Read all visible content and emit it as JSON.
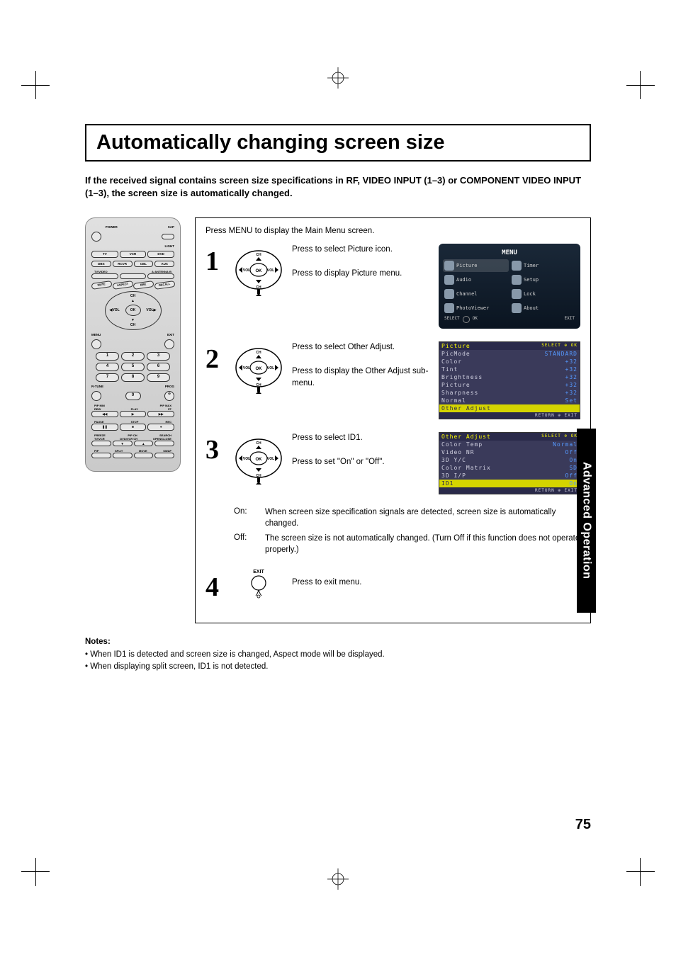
{
  "page": {
    "title": "Automatically changing screen size",
    "intro": "If the received signal contains screen size specifications in RF, VIDEO INPUT (1–3) or COMPONENT VIDEO INPUT (1–3), the screen size is automatically changed.",
    "side_tab": "Advanced Operation",
    "page_number": "75"
  },
  "steps": {
    "header": "Press MENU to display the Main Menu screen.",
    "items": [
      {
        "num": "1",
        "text1": "Press to select Picture icon.",
        "text2": "Press to display Picture menu.",
        "osd_type": "menu"
      },
      {
        "num": "2",
        "text1": "Press to select Other Adjust.",
        "text2": "Press to display the Other Adjust sub-menu.",
        "osd_type": "picture"
      },
      {
        "num": "3",
        "text1": "Press to select ID1.",
        "text2": "Press to set \"On\" or \"Off\".",
        "osd_type": "other"
      },
      {
        "num": "4",
        "text1": "Press to exit menu."
      }
    ],
    "onoff": {
      "on_label": "On:",
      "on_text": "When screen size specification signals are detected, screen size is automatically changed.",
      "off_label": "Off:",
      "off_text": "The screen size is not automatically changed. (Turn Off if this function does not operate properly.)"
    }
  },
  "notes": {
    "title": "Notes:",
    "items": [
      "When ID1 is detected and screen size is changed, Aspect mode will be displayed.",
      "When displaying split screen, ID1 is not detected."
    ]
  },
  "osd": {
    "menu": {
      "title": "MENU",
      "cells": [
        "Picture",
        "Timer",
        "Audio",
        "Setup",
        "Channel",
        "Lock",
        "PhotoViewer",
        "About"
      ],
      "footer": {
        "select": "SELECT",
        "ok": "OK",
        "exit": "EXIT"
      }
    },
    "picture": {
      "title": "Picture",
      "rows": [
        {
          "label": "PicMode",
          "val": "STANDARD"
        },
        {
          "label": "Color",
          "val": "+32"
        },
        {
          "label": "Tint",
          "val": "+32"
        },
        {
          "label": "Brightness",
          "val": "+32"
        },
        {
          "label": "Picture",
          "val": "+32"
        },
        {
          "label": "Sharpness",
          "val": "+32"
        },
        {
          "label": "Normal",
          "val": "Set"
        },
        {
          "label": "Other Adjust",
          "val": "",
          "hl": true
        }
      ],
      "footer": {
        "select": "SELECT",
        "ok": "OK",
        "return": "RETURN",
        "exit": "EXIT"
      }
    },
    "other": {
      "title": "Other Adjust",
      "rows": [
        {
          "label": "Color Temp",
          "val": "Normal"
        },
        {
          "label": "Video NR",
          "val": "Off"
        },
        {
          "label": "3D Y/C",
          "val": "On"
        },
        {
          "label": "Color Matrix",
          "val": "SD"
        },
        {
          "label": "3D I/P",
          "val": "Off"
        },
        {
          "label": "ID1",
          "val": "On",
          "hl": true
        }
      ],
      "footer": {
        "select": "SELECT",
        "ok": "OK",
        "return": "RETURN",
        "exit": "EXIT"
      }
    }
  },
  "remote": {
    "power": "POWER",
    "sap": "SAP",
    "light": "LIGHT",
    "row1": [
      "TV",
      "VCR",
      "DVD"
    ],
    "row2": [
      "DBS",
      "RCVR",
      "CBL",
      "AUX"
    ],
    "row3_labels": [
      "TV/VIDEO",
      "",
      "A·ANTENNA·B"
    ],
    "row4": [
      "MUTE",
      "ASPECT",
      "BBE",
      "RECALL"
    ],
    "nav": {
      "ch": "CH",
      "vol": "VOL",
      "ok": "OK",
      "menu": "MENU",
      "exit": "EXIT"
    },
    "numpad": [
      "1",
      "2",
      "3",
      "4",
      "5",
      "6",
      "7",
      "8",
      "9",
      "",
      "0",
      ""
    ],
    "rtune": "R-TUNE",
    "prog": "PROG",
    "transport_labels": [
      "PIP MIN",
      "",
      "PIP MAX"
    ],
    "transport_labels2": [
      "REW",
      "PLAY",
      "FF"
    ],
    "transport_labels3": [
      "PAUSE",
      "STOP",
      "REC"
    ],
    "bottom_labels": [
      "FREEZE",
      "PIP CH",
      "SEARCH"
    ],
    "bottom_labels2": [
      "TV/VCR",
      "DVD/VCR CH",
      "OPEN/CLOSE"
    ],
    "bottom_row": [
      "PIP",
      "SPLIT",
      "MOVE",
      "SWAP"
    ]
  },
  "exit_label": "EXIT",
  "colors": {
    "bg": "#ffffff",
    "text": "#000000",
    "osd_bg": "#3a3a5a",
    "osd_highlight": "#d4d400",
    "osd_val": "#5599ff",
    "sidebar": "#000000"
  }
}
